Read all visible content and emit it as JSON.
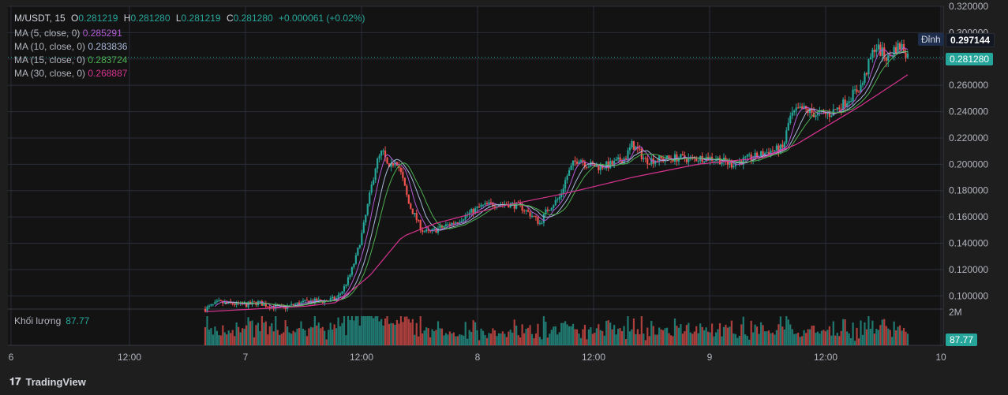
{
  "header": {
    "symbol": "M/USDT, 15",
    "open_label": "O",
    "open": "0.281219",
    "high_label": "H",
    "high": "0.281280",
    "low_label": "L",
    "low": "0.281219",
    "close_label": "C",
    "close": "0.281280",
    "change": "+0.000061 (+0.02%)"
  },
  "indicators": [
    {
      "label": "MA (5, close, 0)",
      "value": "0.285291",
      "color": "#b45cd6"
    },
    {
      "label": "MA (10, close, 0)",
      "value": "0.283836",
      "color": "#a9b7d8"
    },
    {
      "label": "MA (15, close, 0)",
      "value": "0.283724",
      "color": "#4caf50"
    },
    {
      "label": "MA (30, close, 0)",
      "value": "0.268887",
      "color": "#d6338f"
    }
  ],
  "volume_pane": {
    "label": "Khối lượng",
    "value": "87.77",
    "scale_label": "2M"
  },
  "badges": {
    "top_label": "Đỉnh",
    "top_value": "0.297144",
    "last_price": "0.281280",
    "volume_value": "87.77"
  },
  "branding": {
    "logo_text": "TradingView"
  },
  "colors": {
    "up": "#26a69a",
    "down": "#ef5350",
    "background": "#1e1e1e",
    "grid": "#2a2e39",
    "axis_text": "#b2b5be"
  },
  "chart_data": {
    "type": "candlestick",
    "price_axis": {
      "min": 0.09,
      "max": 0.32,
      "ticks": [
        "0.320000",
        "0.300000",
        "0.280000",
        "0.260000",
        "0.240000",
        "0.220000",
        "0.200000",
        "0.180000",
        "0.160000",
        "0.140000",
        "0.120000",
        "0.100000"
      ]
    },
    "time_axis": {
      "ticks": [
        "6",
        "12:00",
        "7",
        "12:00",
        "8",
        "12:00",
        "9",
        "12:00",
        "10"
      ]
    },
    "price_path": [
      [
        0,
        0.09
      ],
      [
        2,
        0.095
      ],
      [
        4,
        0.094
      ],
      [
        6,
        0.093
      ],
      [
        8,
        0.095
      ],
      [
        10,
        0.092
      ],
      [
        12,
        0.091
      ],
      [
        14,
        0.094
      ],
      [
        16,
        0.096
      ],
      [
        18,
        0.096
      ],
      [
        20,
        0.098
      ],
      [
        21,
        0.105
      ],
      [
        22,
        0.115
      ],
      [
        23,
        0.13
      ],
      [
        24,
        0.15
      ],
      [
        25,
        0.175
      ],
      [
        26,
        0.2
      ],
      [
        27,
        0.21
      ],
      [
        28,
        0.195
      ],
      [
        29,
        0.205
      ],
      [
        30,
        0.19
      ],
      [
        31,
        0.17
      ],
      [
        32,
        0.16
      ],
      [
        33,
        0.15
      ],
      [
        34,
        0.148
      ],
      [
        36,
        0.152
      ],
      [
        38,
        0.156
      ],
      [
        40,
        0.162
      ],
      [
        42,
        0.168
      ],
      [
        44,
        0.17
      ],
      [
        46,
        0.17
      ],
      [
        48,
        0.168
      ],
      [
        50,
        0.16
      ],
      [
        51,
        0.155
      ],
      [
        52,
        0.165
      ],
      [
        54,
        0.175
      ],
      [
        55,
        0.19
      ],
      [
        56,
        0.2
      ],
      [
        57,
        0.205
      ],
      [
        58,
        0.2
      ],
      [
        60,
        0.198
      ],
      [
        62,
        0.2
      ],
      [
        64,
        0.205
      ],
      [
        65,
        0.215
      ],
      [
        66,
        0.21
      ],
      [
        67,
        0.203
      ],
      [
        70,
        0.204
      ],
      [
        72,
        0.205
      ],
      [
        74,
        0.204
      ],
      [
        76,
        0.205
      ],
      [
        78,
        0.204
      ],
      [
        80,
        0.2
      ],
      [
        82,
        0.203
      ],
      [
        84,
        0.206
      ],
      [
        86,
        0.21
      ],
      [
        88,
        0.212
      ],
      [
        89,
        0.235
      ],
      [
        90,
        0.24
      ],
      [
        91,
        0.242
      ],
      [
        93,
        0.238
      ],
      [
        95,
        0.238
      ],
      [
        97,
        0.245
      ],
      [
        99,
        0.255
      ],
      [
        100,
        0.26
      ],
      [
        101,
        0.275
      ],
      [
        102,
        0.29
      ],
      [
        103,
        0.285
      ],
      [
        104,
        0.28
      ],
      [
        105,
        0.288
      ],
      [
        106,
        0.29
      ],
      [
        107,
        0.283
      ]
    ],
    "ma30_path": [
      [
        0,
        0.088
      ],
      [
        15,
        0.092
      ],
      [
        20,
        0.095
      ],
      [
        25,
        0.115
      ],
      [
        30,
        0.145
      ],
      [
        35,
        0.155
      ],
      [
        45,
        0.168
      ],
      [
        55,
        0.178
      ],
      [
        65,
        0.19
      ],
      [
        75,
        0.2
      ],
      [
        85,
        0.205
      ],
      [
        90,
        0.215
      ],
      [
        100,
        0.245
      ],
      [
        107,
        0.268
      ]
    ],
    "volume_max": 2000000
  }
}
